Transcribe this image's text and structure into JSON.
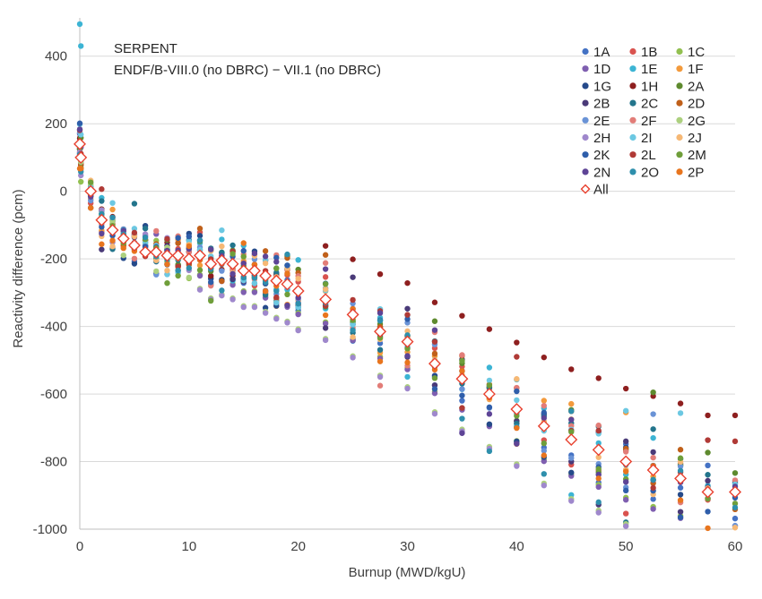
{
  "chart_data": {
    "type": "scatter",
    "title": "",
    "annotations": [
      "SERPENT",
      "ENDF/B-VIII.0  (no DBRC) − VII.1 (no DBRC)"
    ],
    "xlabel": "Burnup (MWD/kgU)",
    "ylabel": "Reactivity difference (pcm)",
    "xlim": [
      0,
      60
    ],
    "ylim": [
      -1000,
      500
    ],
    "xticks": [
      0,
      10,
      20,
      30,
      40,
      50,
      60
    ],
    "yticks": [
      -1000,
      -800,
      -600,
      -400,
      -200,
      0,
      200,
      400
    ],
    "grid": "horizontal",
    "legend_position": "top-right",
    "burnup_steps": [
      0,
      0.1,
      1,
      2,
      3,
      4,
      5,
      6,
      7,
      8,
      9,
      10,
      11,
      12,
      13,
      14,
      15,
      16,
      17,
      18,
      19,
      20,
      22.5,
      25,
      27.5,
      30,
      32.5,
      35,
      37.5,
      40,
      42.5,
      45,
      47.5,
      50,
      52.5,
      55,
      57.5,
      60
    ],
    "all_series": {
      "name": "All",
      "color": "#e8412f",
      "marker": "open-diamond",
      "values": [
        140,
        100,
        0,
        -85,
        -115,
        -140,
        -160,
        -180,
        -180,
        -190,
        -190,
        -200,
        -190,
        -215,
        -205,
        -215,
        -235,
        -235,
        -250,
        -265,
        -275,
        -295,
        -320,
        -365,
        -415,
        -445,
        -510,
        -555,
        -600,
        -645,
        -695,
        -735,
        -765,
        -800,
        -825,
        -850,
        -890,
        -890
      ]
    },
    "series": [
      {
        "name": "1A",
        "color": "#4472c4"
      },
      {
        "name": "1B",
        "color": "#d9534f"
      },
      {
        "name": "1C",
        "color": "#92c050"
      },
      {
        "name": "1D",
        "color": "#7f5fb0"
      },
      {
        "name": "1E",
        "color": "#3cb4d4"
      },
      {
        "name": "1F",
        "color": "#f39a3c"
      },
      {
        "name": "1G",
        "color": "#254a8a"
      },
      {
        "name": "1H",
        "color": "#8e1f1f"
      },
      {
        "name": "2A",
        "color": "#5e8a2e"
      },
      {
        "name": "2B",
        "color": "#4a3a78"
      },
      {
        "name": "2C",
        "color": "#23758c"
      },
      {
        "name": "2D",
        "color": "#c0601a"
      },
      {
        "name": "2E",
        "color": "#6a93d6"
      },
      {
        "name": "2F",
        "color": "#e27d78"
      },
      {
        "name": "2G",
        "color": "#acd07e"
      },
      {
        "name": "2H",
        "color": "#9f88cc"
      },
      {
        "name": "2I",
        "color": "#6cc8e2"
      },
      {
        "name": "2J",
        "color": "#f6b875"
      },
      {
        "name": "2K",
        "color": "#2f5eaa"
      },
      {
        "name": "2L",
        "color": "#b03a36"
      },
      {
        "name": "2M",
        "color": "#6f9e3a"
      },
      {
        "name": "2N",
        "color": "#5e4496"
      },
      {
        "name": "2O",
        "color": "#2e8fac"
      },
      {
        "name": "2P",
        "color": "#e8751e"
      }
    ]
  }
}
